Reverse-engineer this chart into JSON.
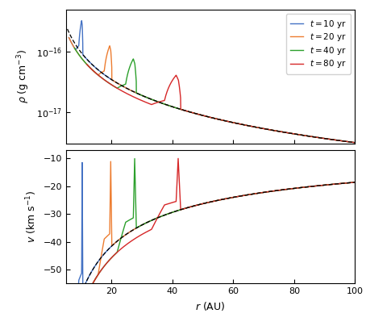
{
  "title": "",
  "xlabel": "$r$ (AU)",
  "ylabel_top": "$\\rho$ (g cm$^{-3}$)",
  "ylabel_bot": "$v$ (km s$^{-1}$)",
  "legend_labels": [
    "$t = 10$ yr",
    "$t = 20$ yr",
    "$t = 40$ yr",
    "$t = 80$ yr"
  ],
  "colors": [
    "#4472c4",
    "#ed7d31",
    "#2ca02c",
    "#d62728"
  ],
  "xlim": [
    5,
    100
  ],
  "rho_ylim": [
    3e-18,
    5e-16
  ],
  "v_ylim": [
    -55,
    -7
  ],
  "v_yticks": [
    -50,
    -40,
    -30,
    -20,
    -10
  ],
  "figsize": [
    4.54,
    4.04
  ],
  "dpi": 100,
  "r_if": {
    "10": 10.5,
    "20": 20.0,
    "40": 28.0,
    "80": 42.5
  },
  "times": [
    10,
    20,
    40,
    80
  ],
  "rho0": 2.1e-16,
  "r0": 6.0,
  "v0": -28.5,
  "r0v": 42.5
}
